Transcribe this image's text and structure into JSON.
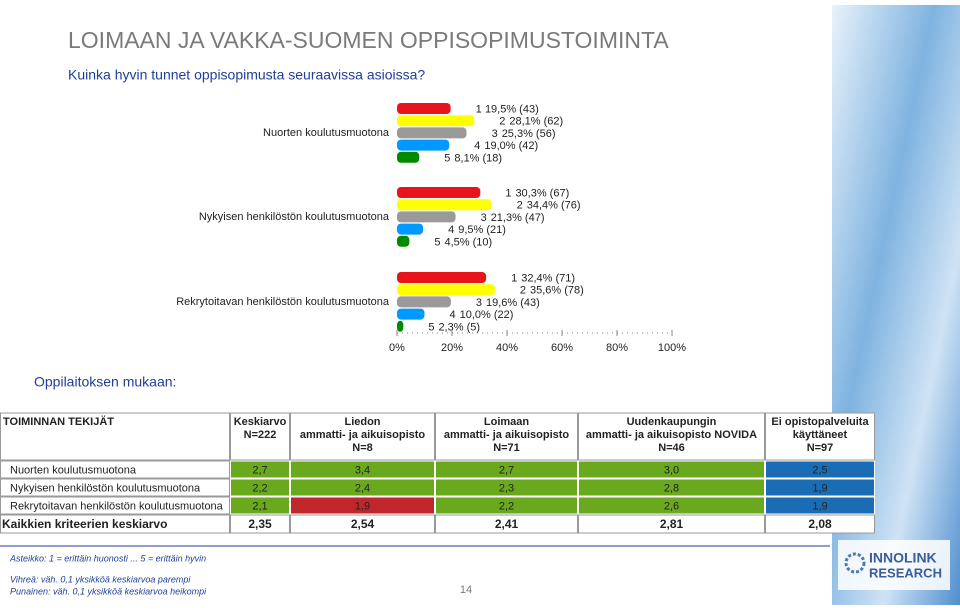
{
  "header": {
    "title": "LOIMAAN JA VAKKA-SUOMEN OPPISOPIMUSTOIMINTA",
    "subtitle": "Kuinka hyvin tunnet oppisopimusta seuraavissa asioissa?"
  },
  "chart_data": {
    "type": "bar",
    "orientation": "horizontal",
    "categories": [
      "Nuorten koulutusmuotona",
      "Nykyisen henkilöstön koulutusmuotona",
      "Rekrytoitavan henkilöstön koulutusmuotona"
    ],
    "series": [
      {
        "name": "1",
        "color": "#e8141b",
        "values": [
          19.5,
          30.3,
          32.4
        ],
        "value_labels": [
          "19,5% (43)",
          "30,3% (67)",
          "32,4% (71)"
        ]
      },
      {
        "name": "2",
        "color": "#ffff00",
        "values": [
          28.1,
          34.4,
          35.6
        ],
        "value_labels": [
          "28,1% (62)",
          "34,4% (76)",
          "35,6% (78)"
        ]
      },
      {
        "name": "3",
        "color": "#9a9a9a",
        "values": [
          25.3,
          21.3,
          19.6
        ],
        "value_labels": [
          "25,3% (56)",
          "21,3% (47)",
          "19,6% (43)"
        ]
      },
      {
        "name": "4",
        "color": "#0099ff",
        "values": [
          19.0,
          9.5,
          10.0
        ],
        "value_labels": [
          "19,0% (42)",
          "9,5% (21)",
          "10,0% (22)"
        ]
      },
      {
        "name": "5",
        "color": "#008a00",
        "values": [
          8.1,
          4.5,
          2.3
        ],
        "value_labels": [
          "8,1% (18)",
          "4,5% (10)",
          "2,3% (5)"
        ]
      }
    ],
    "xlim": [
      0,
      100
    ],
    "xticks": [
      {
        "value": 0,
        "label": "0%"
      },
      {
        "value": 20,
        "label": "20%"
      },
      {
        "value": 40,
        "label": "40%"
      },
      {
        "value": 60,
        "label": "60%"
      },
      {
        "value": 80,
        "label": "80%"
      },
      {
        "value": 100,
        "label": "100%"
      }
    ]
  },
  "section": "Oppilaitoksen mukaan:",
  "table": {
    "header": [
      [
        "TOIMINNAN TEKIJÄT"
      ],
      [
        "Keskiarvo",
        "N=222"
      ],
      [
        "Liedon",
        "ammatti- ja aikuisopisto",
        "N=8"
      ],
      [
        "Loimaan",
        "ammatti- ja aikuisopisto",
        "N=71"
      ],
      [
        "Uudenkaupungin",
        "ammatti- ja aikuisopisto NOVIDA",
        "N=46"
      ],
      [
        "Ei opistopalveluita",
        "käyttäneet",
        "N=97"
      ]
    ],
    "rows": [
      [
        "Nuorten koulutusmuotona",
        "2,7",
        "3,4",
        "2,7",
        "3,0",
        "2,5"
      ],
      [
        "Nykyisen henkilöstön koulutusmuotona",
        "2,2",
        "2,4",
        "2,3",
        "2,8",
        "1,9"
      ],
      [
        "Rekrytoitavan henkilöstön koulutusmuotona",
        "2,1",
        "1,9",
        "2,2",
        "2,6",
        "1,9"
      ],
      [
        "Kaikkien kriteerien keskiarvo",
        "2,35",
        "2,54",
        "2,41",
        "2,81",
        "2,08"
      ]
    ],
    "cell_colors": [
      [
        null,
        "#6aa81e",
        "#6aa81e",
        "#6aa81e",
        "#6aa81e",
        "#1a6db5"
      ],
      [
        null,
        "#6aa81e",
        "#6aa81e",
        "#6aa81e",
        "#6aa81e",
        "#1a6db5"
      ],
      [
        null,
        "#6aa81e",
        "#c0272d",
        "#6aa81e",
        "#6aa81e",
        "#1a6db5"
      ],
      [
        null,
        null,
        null,
        null,
        null,
        null
      ]
    ]
  },
  "notes": [
    "Asteikko: 1 = erittäin huonosti ... 5 = erittäin hyvin",
    "Vihreä: väh. 0,1 yksikköä keskiarvoa parempi",
    "Punainen: väh. 0,1 yksikköä keskiarvoa heikompi"
  ],
  "footer": {
    "page": "14",
    "logo": [
      "INNOLINK",
      "RESEARCH"
    ]
  }
}
